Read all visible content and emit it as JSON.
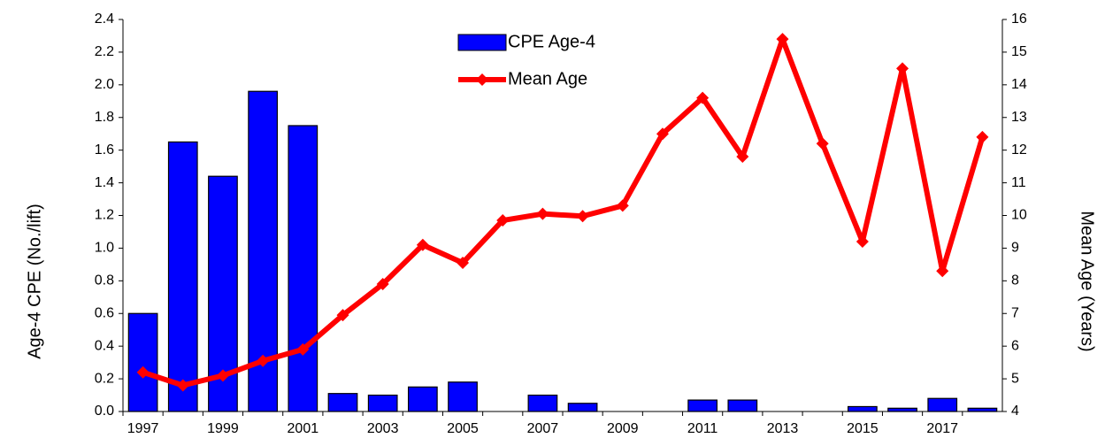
{
  "chart_data": {
    "type": "bar_line",
    "y_label": "Age-4  CPE (No./lift)",
    "y2_label": "Mean Age (Years)",
    "categories": [
      "1997",
      null,
      "1999",
      null,
      "2001",
      null,
      "2003",
      null,
      "2005",
      null,
      "2007",
      null,
      "2009",
      null,
      "2011",
      null,
      "2013",
      null,
      "2015",
      null,
      "2017",
      null
    ],
    "series": [
      {
        "name": "CPE Age-4",
        "type": "bar",
        "color": "#0000ff",
        "values": [
          0.6,
          1.65,
          1.44,
          1.96,
          1.75,
          0.11,
          0.1,
          0.15,
          0.18,
          0,
          0.1,
          0.05,
          0,
          0,
          0.07,
          0.07,
          0,
          0,
          0.03,
          0.02,
          0.08,
          0.02
        ]
      },
      {
        "name": "Mean Age",
        "type": "line",
        "axis": "y2",
        "color": "#ff0000",
        "values": [
          5.2,
          4.8,
          5.1,
          5.55,
          5.9,
          6.95,
          7.9,
          9.1,
          8.55,
          9.85,
          10.05,
          9.98,
          10.3,
          12.5,
          13.6,
          11.8,
          15.4,
          12.2,
          9.2,
          14.5,
          8.3,
          12.4
        ]
      }
    ],
    "ylim": [
      0,
      2.4
    ],
    "yticks": [
      {
        "value": 0,
        "label": "0.0"
      },
      0.2,
      0.4,
      0.6,
      0.8,
      {
        "value": 1,
        "label": "1.0"
      },
      1.2,
      1.4,
      1.6,
      1.8,
      {
        "value": 2,
        "label": "2.0"
      },
      2.2,
      2.4
    ],
    "y2lim": [
      4,
      16
    ],
    "y2ticks": [
      4,
      5,
      6,
      7,
      8,
      9,
      10,
      11,
      12,
      13,
      14,
      15,
      16
    ],
    "legend": "top"
  }
}
